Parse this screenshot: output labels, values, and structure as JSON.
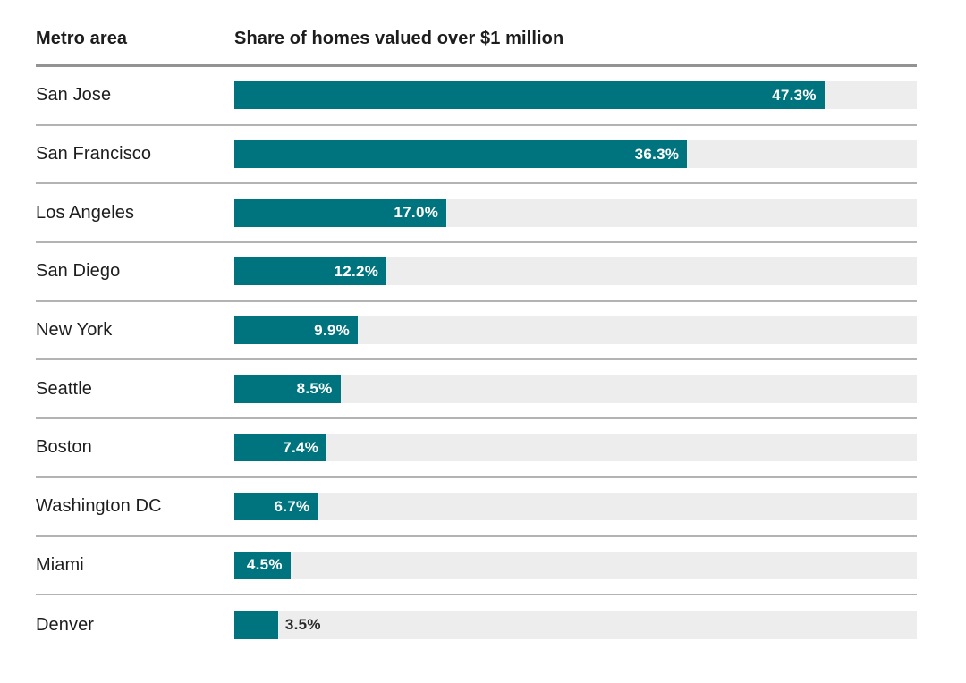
{
  "header": {
    "metro_col_label": "Metro area",
    "value_col_label": "Share of homes valued over $1 million"
  },
  "chart_data": {
    "type": "bar",
    "orientation": "horizontal",
    "title": "Share of homes valued over $1 million",
    "xlabel": "",
    "ylabel": "Metro area",
    "categories": [
      "San Jose",
      "San Francisco",
      "Los Angeles",
      "San Diego",
      "New York",
      "Seattle",
      "Boston",
      "Washington DC",
      "Miami",
      "Denver"
    ],
    "values": [
      47.3,
      36.3,
      17.0,
      12.2,
      9.9,
      8.5,
      7.4,
      6.7,
      4.5,
      3.5
    ],
    "value_labels": [
      "47.3%",
      "36.3%",
      "17.0%",
      "12.2%",
      "9.9%",
      "8.5%",
      "7.4%",
      "6.7%",
      "4.5%",
      "3.5%"
    ],
    "xlim": [
      0,
      54.7
    ],
    "grid": false,
    "legend": false,
    "colors": {
      "bar": "#00747e",
      "track": "#ededed",
      "row_divider": "#b3b3b3",
      "header_rule": "#939393",
      "label_text": "#1d1d1d",
      "value_text_inside": "#ffffff",
      "value_text_outside": "#2a2a2a"
    }
  }
}
